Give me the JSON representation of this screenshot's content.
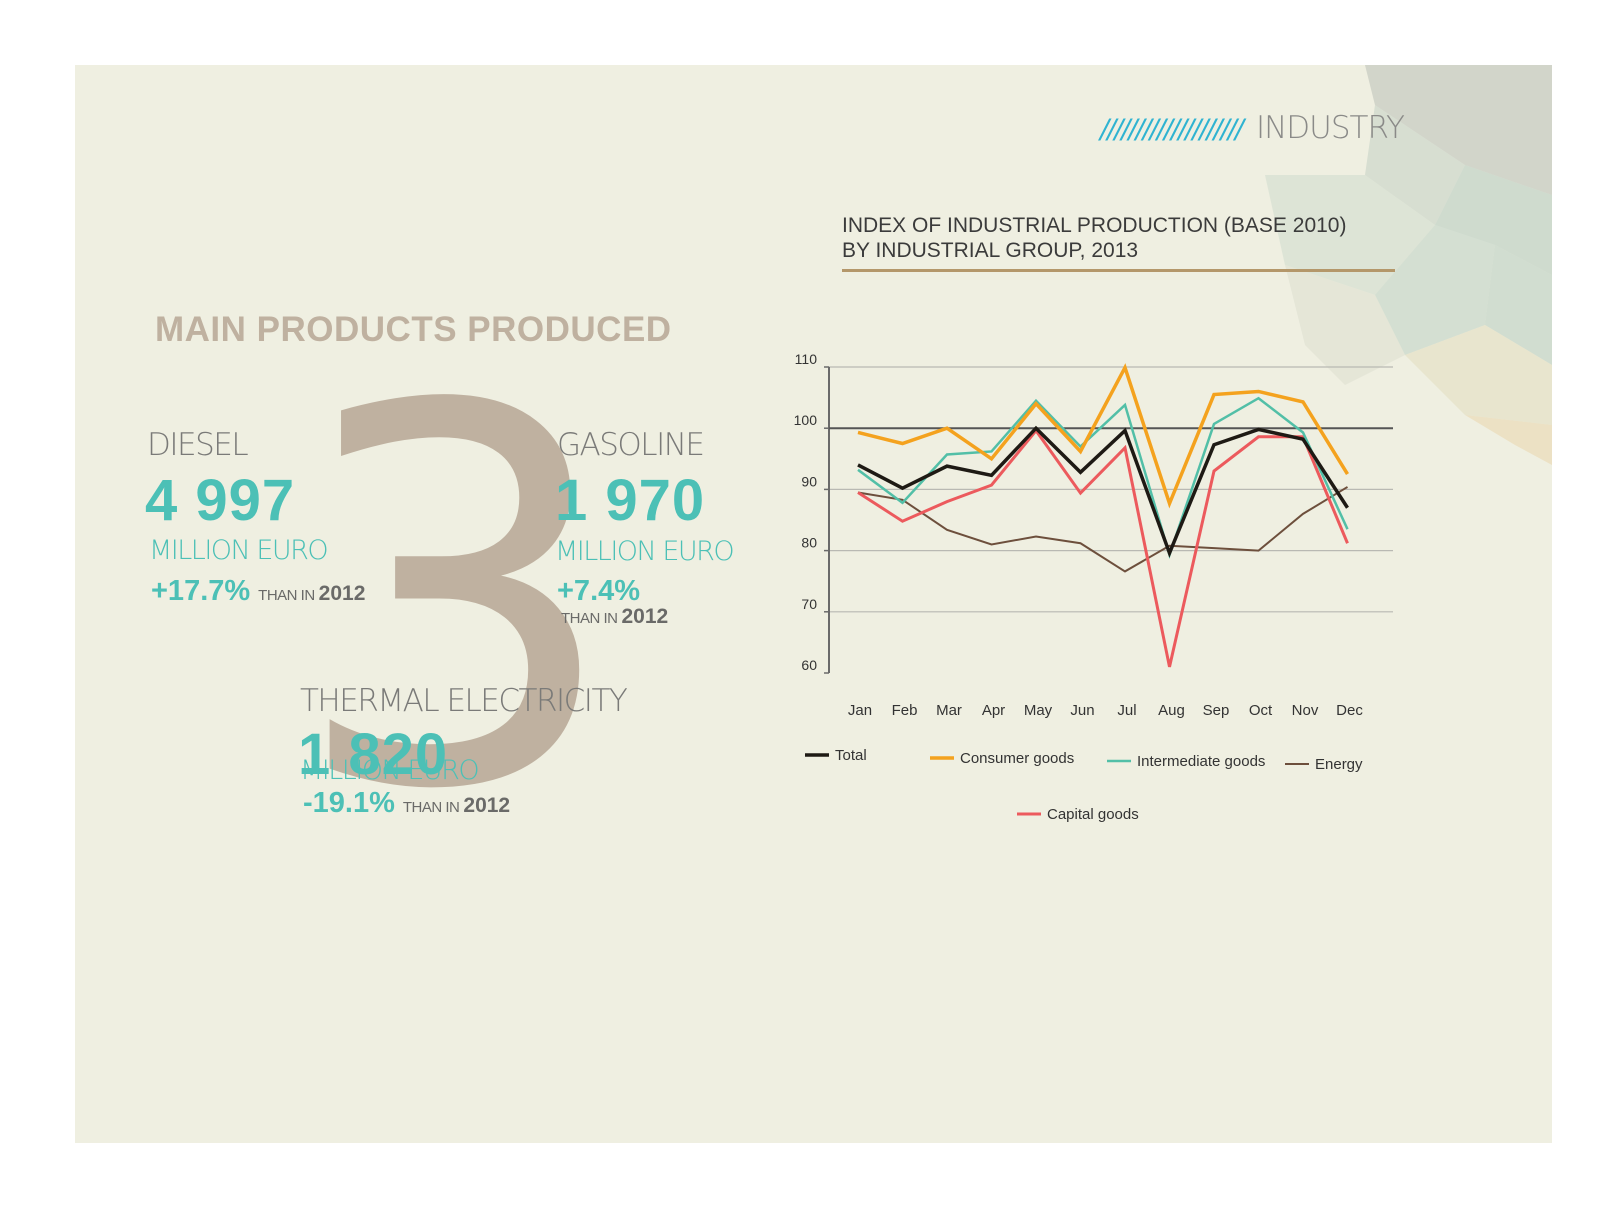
{
  "section": {
    "slashes": "////////////////////",
    "label": "INDUSTRY"
  },
  "heading": "MAIN PRODUCTS PRODUCED",
  "big_number": "3",
  "products": [
    {
      "name": "DIESEL",
      "value": "4 997",
      "unit": "MILLION EURO",
      "change": "+17.7%",
      "than": "THAN IN",
      "year": "2012"
    },
    {
      "name": "GASOLINE",
      "value": "1 970",
      "unit": "MILLION EURO",
      "change": "+7.4%",
      "than": "THAN IN",
      "year": "2012"
    },
    {
      "name": "THERMAL ELECTRICITY",
      "value": "1 820",
      "unit": "MILLION EURO",
      "change": "-19.1%",
      "than": "THAN IN",
      "year": "2012"
    }
  ],
  "chart_data": {
    "type": "line",
    "title": "INDEX OF INDUSTRIAL PRODUCTION (BASE 2010)",
    "subtitle": "BY INDUSTRIAL GROUP, 2013",
    "xlabel": "",
    "ylabel": "",
    "categories": [
      "Jan",
      "Feb",
      "Mar",
      "Apr",
      "May",
      "Jun",
      "Jul",
      "Aug",
      "Sep",
      "Oct",
      "Nov",
      "Dec"
    ],
    "ylim": [
      60,
      110
    ],
    "yticks": [
      60,
      70,
      80,
      90,
      100,
      110
    ],
    "reference_line": 100,
    "grid": true,
    "legend_position": "bottom",
    "series": [
      {
        "name": "Total",
        "color": "#1e1a14",
        "width": 3.5,
        "values": [
          94,
          90.2,
          93.8,
          92.3,
          100,
          92.8,
          99.6,
          79.6,
          97.3,
          99.8,
          98.2,
          87
        ]
      },
      {
        "name": "Consumer goods",
        "color": "#f4a21e",
        "width": 3.5,
        "values": [
          99.3,
          97.5,
          100,
          95,
          104,
          96.2,
          109.9,
          87.7,
          105.5,
          106,
          104.3,
          92.5
        ]
      },
      {
        "name": "Intermediate goods",
        "color": "#52bfa7",
        "width": 2.5,
        "values": [
          93.2,
          87.8,
          95.7,
          96.2,
          104.5,
          97,
          103.8,
          79.3,
          100.7,
          104.9,
          99.3,
          83.5
        ]
      },
      {
        "name": "Energy",
        "color": "#6d4f3c",
        "width": 2,
        "values": [
          89.5,
          88.3,
          83.4,
          81,
          82.3,
          81.2,
          76.6,
          80.8,
          80.4,
          80,
          86,
          90.4
        ]
      },
      {
        "name": "Capital goods",
        "color": "#ec5a5d",
        "width": 3,
        "values": [
          89.5,
          84.8,
          88,
          90.7,
          99.6,
          89.4,
          96.8,
          61,
          93,
          98.6,
          98.6,
          81.2
        ]
      }
    ]
  }
}
